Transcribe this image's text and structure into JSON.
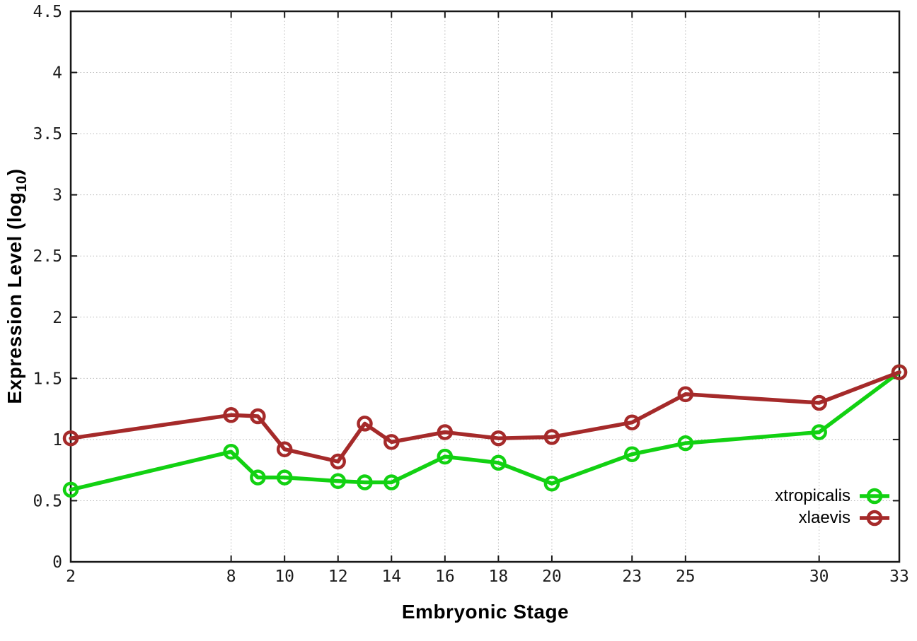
{
  "chart_data": {
    "type": "line",
    "title": "",
    "xlabel": "Embryonic Stage",
    "ylabel": "Expression Level (log10)",
    "ylabel_parts": {
      "prefix": "Expression Level (log",
      "subscript": "10",
      "suffix": ")"
    },
    "x": [
      2,
      8,
      9,
      10,
      12,
      13,
      14,
      16,
      18,
      20,
      23,
      25,
      30,
      33
    ],
    "x_ticks": [
      2,
      8,
      10,
      12,
      14,
      16,
      18,
      20,
      23,
      25,
      30,
      33
    ],
    "x_tick_labels": [
      "2",
      "8",
      "10",
      "12",
      "14",
      "16",
      "18",
      "20",
      "23",
      "25",
      "30",
      "33"
    ],
    "y_ticks": [
      0,
      0.5,
      1,
      1.5,
      2,
      2.5,
      3,
      3.5,
      4,
      4.5
    ],
    "y_tick_labels": [
      "0",
      "0.5",
      "1",
      "1.5",
      "2",
      "2.5",
      "3",
      "3.5",
      "4",
      "4.5"
    ],
    "xlim": [
      2,
      33
    ],
    "ylim": [
      0,
      4.5
    ],
    "grid": true,
    "legend_position": "inside-bottom-right",
    "series": [
      {
        "name": "xtropicalis",
        "color": "#12d112",
        "values": [
          0.59,
          0.9,
          0.69,
          0.69,
          0.66,
          0.65,
          0.65,
          0.86,
          0.81,
          0.64,
          0.88,
          0.97,
          1.06,
          1.55
        ]
      },
      {
        "name": "xlaevis",
        "color": "#a52a2a",
        "values": [
          1.01,
          1.2,
          1.19,
          0.92,
          0.82,
          1.13,
          0.98,
          1.06,
          1.01,
          1.02,
          1.14,
          1.37,
          1.3,
          1.55
        ]
      }
    ],
    "style": {
      "axis_color": "#181818",
      "grid_color": "#b9b9b9",
      "tick_label_color": "#1c1c1c"
    }
  }
}
